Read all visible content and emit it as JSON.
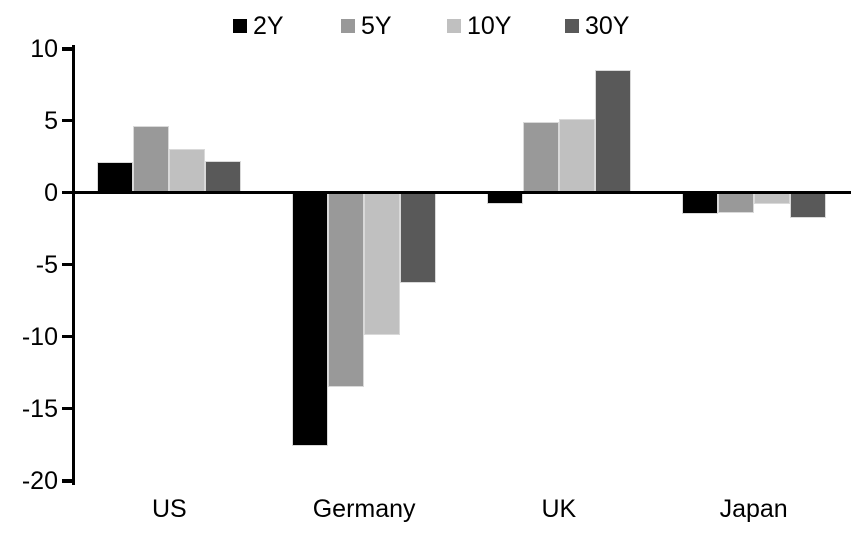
{
  "chart_data": {
    "type": "bar",
    "title": "",
    "xlabel": "",
    "ylabel": "",
    "categories": [
      "US",
      "Germany",
      "UK",
      "Japan"
    ],
    "series": [
      {
        "name": "2Y",
        "color": "#000000",
        "values": [
          2.1,
          -17.6,
          -0.8,
          -1.5
        ]
      },
      {
        "name": "5Y",
        "color": "#999999",
        "values": [
          4.6,
          -13.5,
          4.9,
          -1.4
        ]
      },
      {
        "name": "10Y",
        "color": "#c0c0c0",
        "values": [
          3.0,
          -9.9,
          5.1,
          -0.8
        ]
      },
      {
        "name": "30Y",
        "color": "#595959",
        "values": [
          2.2,
          -6.3,
          8.5,
          -1.8
        ]
      }
    ],
    "ylim": [
      -20,
      10
    ],
    "ytick_step": 5,
    "ytick_labels": [
      "10",
      "5",
      "0",
      "-5",
      "-10",
      "-15",
      "-20"
    ],
    "grid": false,
    "legend_position": "top",
    "axis_color": "#000000",
    "background_color": "#ffffff"
  }
}
